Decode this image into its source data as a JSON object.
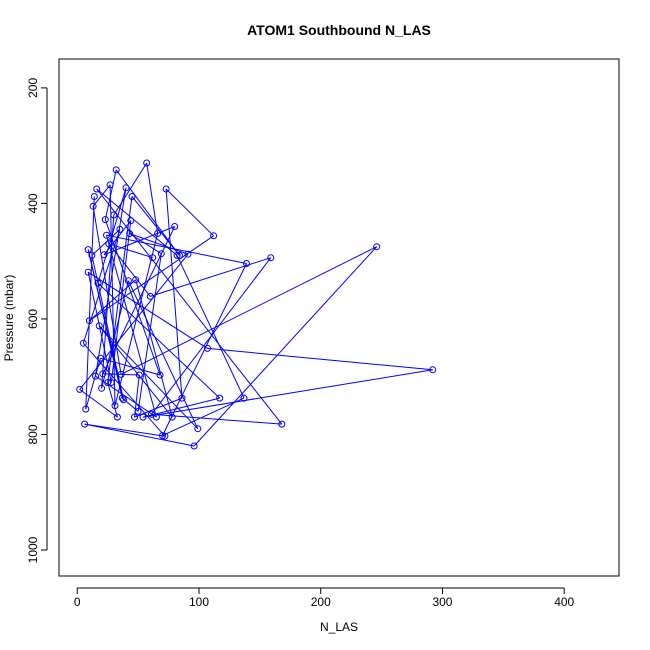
{
  "chart_data": {
    "type": "line",
    "title": "ATOM1 Southbound N_LAS",
    "xlabel": "N_LAS",
    "ylabel": "Pressure (mbar)",
    "xlim": [
      -15,
      445
    ],
    "ylim": [
      1045,
      150
    ],
    "y_reversed": true,
    "x_ticks": [
      0,
      100,
      200,
      300,
      400
    ],
    "y_ticks": [
      200,
      400,
      600,
      800,
      1000
    ],
    "grid": false,
    "markers": "open-circle",
    "line_color": "#0000ff",
    "series": [
      {
        "values": [
          [
            2,
            722
          ],
          [
            5,
            642
          ],
          [
            6,
            782
          ],
          [
            7,
            756
          ],
          [
            9,
            480
          ],
          [
            9,
            519
          ],
          [
            10,
            603
          ],
          [
            12,
            490
          ],
          [
            13,
            405
          ],
          [
            14,
            388
          ],
          [
            15,
            699
          ],
          [
            16,
            375
          ],
          [
            17,
            538
          ],
          [
            18,
            612
          ],
          [
            19,
            668
          ],
          [
            20,
            720
          ],
          [
            21,
            695
          ],
          [
            22,
            489
          ],
          [
            23,
            428
          ],
          [
            24,
            455
          ],
          [
            25,
            710
          ],
          [
            26,
            470
          ],
          [
            27,
            368
          ],
          [
            28,
            710
          ],
          [
            30,
            420
          ],
          [
            31,
            750
          ],
          [
            32,
            342
          ],
          [
            33,
            770
          ],
          [
            35,
            445
          ],
          [
            36,
            696
          ],
          [
            37,
            737
          ],
          [
            38,
            740
          ],
          [
            40,
            373
          ],
          [
            42,
            534
          ],
          [
            43,
            452
          ],
          [
            44,
            430
          ],
          [
            45,
            388
          ],
          [
            47,
            770
          ],
          [
            48,
            532
          ],
          [
            50,
            760
          ],
          [
            51,
            697
          ],
          [
            54,
            770
          ],
          [
            57,
            330
          ],
          [
            60,
            561
          ],
          [
            61,
            765
          ],
          [
            62,
            494
          ],
          [
            65,
            770
          ],
          [
            66,
            452
          ],
          [
            68,
            697
          ],
          [
            69,
            487
          ],
          [
            70,
            802
          ],
          [
            72,
            803
          ],
          [
            73,
            375
          ],
          [
            78,
            770
          ],
          [
            80,
            440
          ],
          [
            82,
            490
          ],
          [
            84,
            490
          ],
          [
            86,
            737
          ],
          [
            91,
            488
          ],
          [
            96,
            820
          ],
          [
            99,
            790
          ],
          [
            107,
            651
          ],
          [
            112,
            456
          ],
          [
            117,
            737
          ],
          [
            137,
            737
          ],
          [
            139,
            504
          ],
          [
            159,
            494
          ],
          [
            168,
            782
          ],
          [
            246,
            475
          ],
          [
            292,
            688
          ]
        ]
      }
    ]
  }
}
